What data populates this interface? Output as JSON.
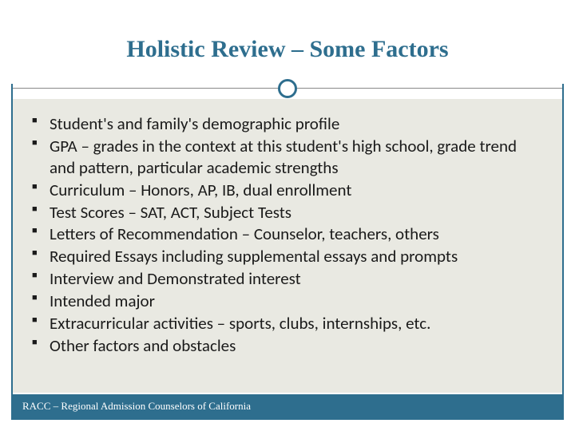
{
  "title": "Holistic Review – Some Factors",
  "bullets": [
    "Student's and family's demographic profile",
    "GPA – grades in the context at this student's high school, grade trend and pattern, particular academic strengths",
    "Curriculum – Honors, AP, IB, dual enrollment",
    "Test Scores – SAT, ACT, Subject Tests",
    "Letters of Recommendation – Counselor, teachers, others",
    "Required Essays including supplemental essays and prompts",
    "Interview and Demonstrated interest",
    "Intended major",
    "Extracurricular activities – sports, clubs, internships, etc.",
    "Other factors and obstacles"
  ],
  "footer": "RACC – Regional Admission Counselors of California",
  "style": {
    "slide_width": 720,
    "slide_height": 540,
    "accent_color": "#2e6e8e",
    "content_bg": "#e9e9e2",
    "page_bg": "#ffffff",
    "text_color": "#1a1a1a",
    "footer_text_color": "#ffffff",
    "title_font": "Georgia serif",
    "title_fontsize": 30,
    "title_weight": 700,
    "body_font": "Calibri sans-serif",
    "body_fontsize": 21,
    "footer_fontsize": 13,
    "bullet_marker": "■",
    "frame_border_width": 2,
    "divider_circle_diameter": 24,
    "divider_circle_border": 3
  }
}
